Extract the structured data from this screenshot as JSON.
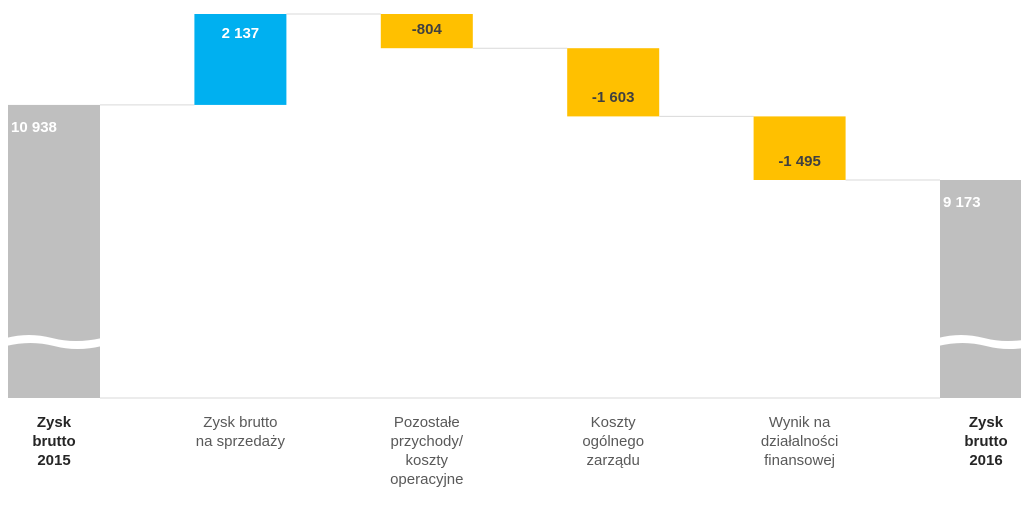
{
  "chart_data": {
    "type": "waterfall",
    "categories": [
      "Zysk\nbrutto\n2015",
      "Zysk brutto\nna  sprzedaży",
      "Pozostałe\nprzychody/\nkoszty\noperacyjne",
      "Koszty\nogólnego\nzarządu",
      "Wynik na\ndziałalności\nfinansowej",
      "Zysk\nbrutto\n2016"
    ],
    "values": [
      10938,
      2137,
      -804,
      -1603,
      -1495,
      9173
    ],
    "value_labels": [
      "10 938",
      "2 137",
      "-804",
      "-1 603",
      "-1 495",
      "9 173"
    ],
    "colors": {
      "total": "#bfbfbf",
      "increase": "#00b0f0",
      "decrease": "#ffc000"
    }
  }
}
